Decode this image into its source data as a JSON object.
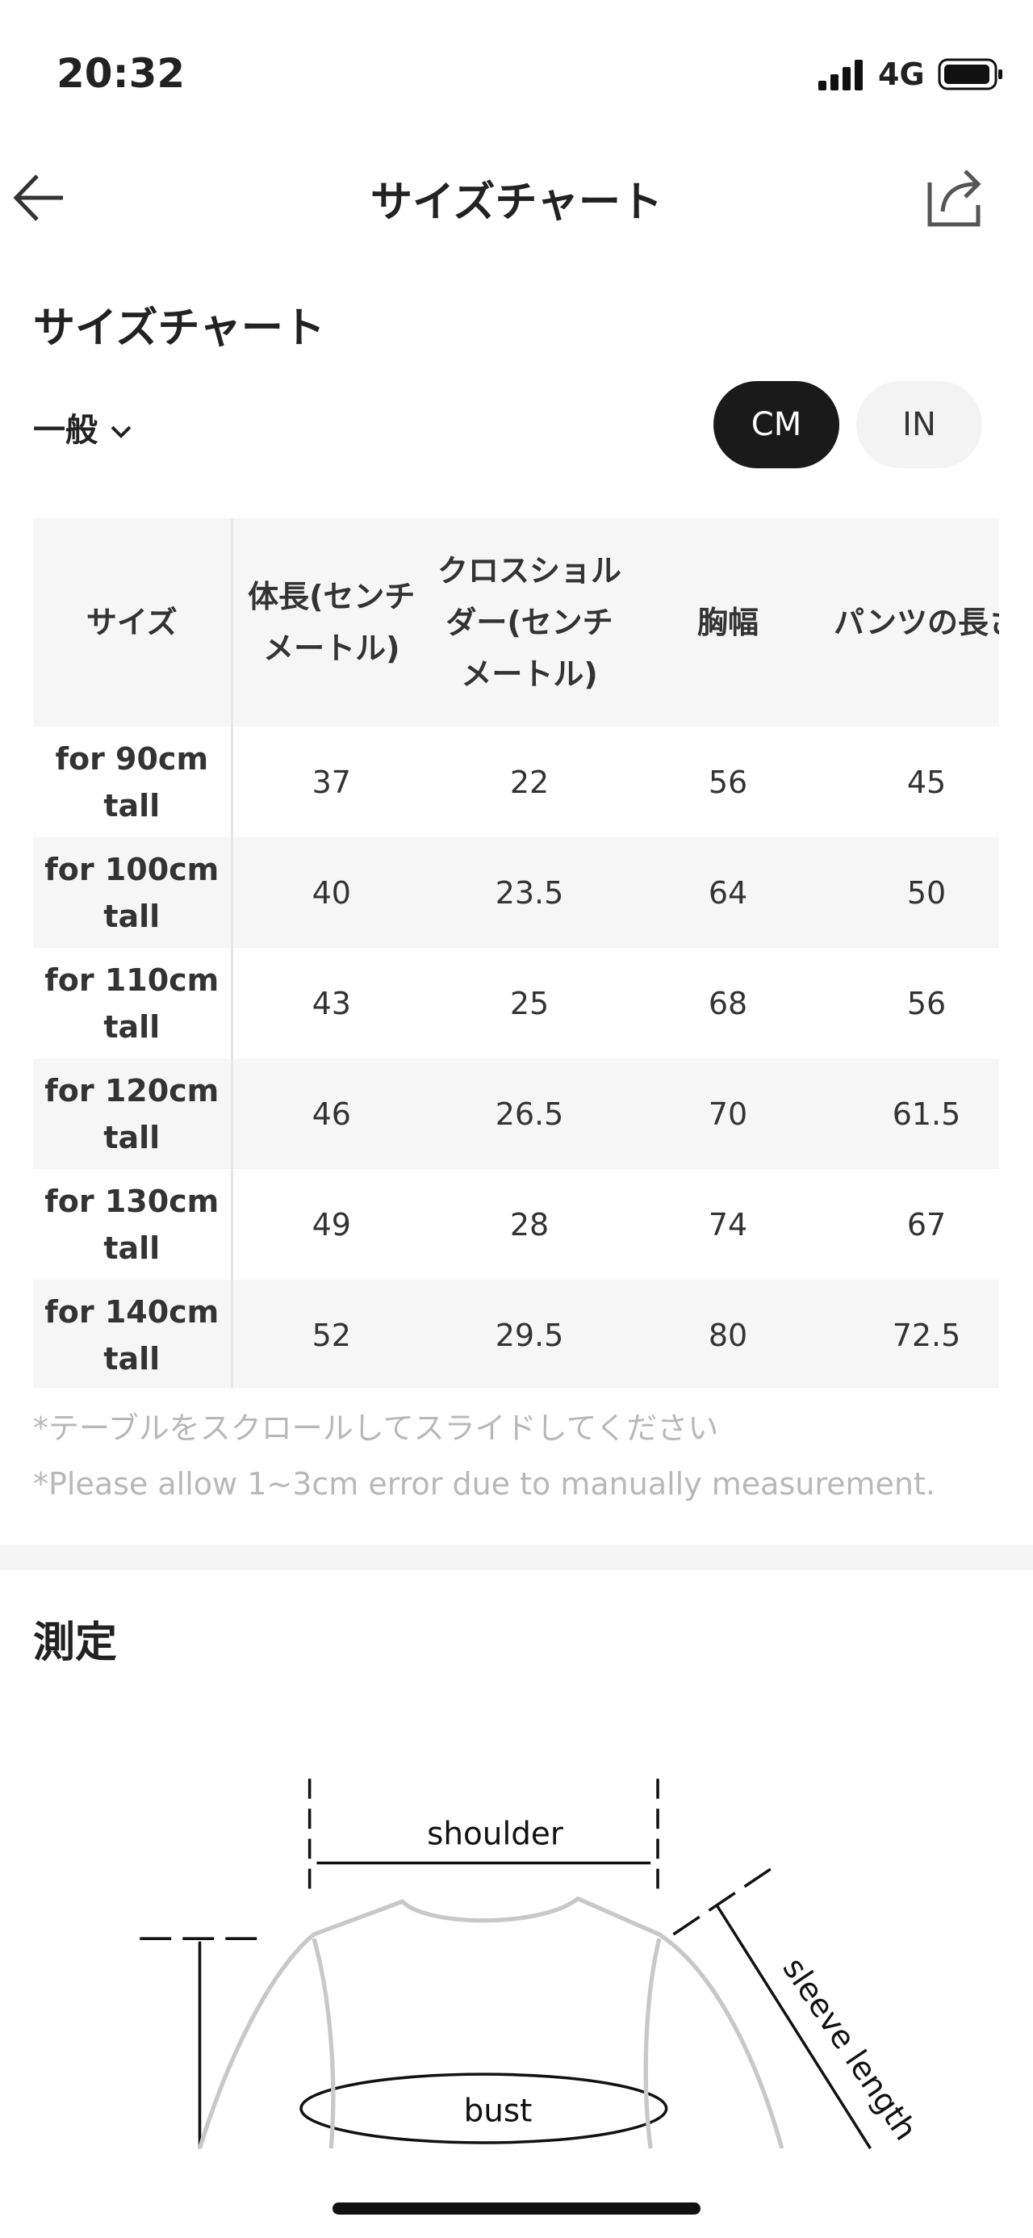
{
  "status_bar": {
    "time": "20:32",
    "network": "4G"
  },
  "header": {
    "title": "サイズチャート"
  },
  "section": {
    "title": "サイズチャート",
    "dropdown": "一般",
    "units": [
      "CM",
      "IN"
    ],
    "selected_unit": "CM"
  },
  "table": {
    "headers": [
      "サイズ",
      "体長(センチメートル)",
      "クロスショルダー(センチメートル)",
      "胸幅",
      "パンツの長さ"
    ],
    "rows": [
      [
        "for 90cm tall",
        37,
        22,
        56,
        45
      ],
      [
        "for 100cm tall",
        40,
        23.5,
        64,
        50
      ],
      [
        "for 110cm tall",
        43,
        25,
        68,
        56
      ],
      [
        "for 120cm tall",
        46,
        26.5,
        70,
        61.5
      ],
      [
        "for 130cm tall",
        49,
        28,
        74,
        67
      ],
      [
        "for 140cm tall",
        52,
        29.5,
        80,
        72.5
      ]
    ]
  },
  "notes": [
    "*テーブルをスクロールしてスライドしてください",
    "*Please allow 1~3cm error due to manually measurement."
  ],
  "measure": {
    "title": "測定",
    "labels": [
      "shoulder",
      "bust",
      "sleeve length"
    ]
  }
}
